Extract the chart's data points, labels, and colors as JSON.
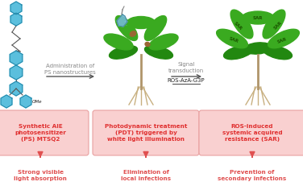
{
  "background_color": "#ffffff",
  "box_left_text": "Synthetic AIE\nphotosensitizer\n(PS) MTSQ2",
  "box_mid_text": "Photodynamic treatment\n(PDT) triggered by\nwhite light illumination",
  "box_right_text": "ROS-induced\nsystemic acquired\nresistance (SAR)",
  "arrow1_label1": "Administration of",
  "arrow1_label2": "PS nanostructures",
  "arrow2_label1": "Signal",
  "arrow2_label2": "transduction",
  "arrow2_label3": "ROS-AzA-G3P",
  "bottom_left1": "Strong visible",
  "bottom_left2": "light absorption",
  "bottom_mid1": "Elimination of",
  "bottom_mid2": "local infections",
  "bottom_right1": "Prevention of",
  "bottom_right2": "secondary infections",
  "box_fill": "#f9d0d0",
  "box_edge": "#e8a0a0",
  "text_red": "#e03030",
  "text_salmon": "#e05050",
  "text_gray": "#888888",
  "text_dark": "#222222",
  "arrow_color": "#555555",
  "hex_fill": "#5bbfdd",
  "hex_edge": "#2288aa",
  "leaf_green": "#3aaa20",
  "leaf_dark": "#228810",
  "stem_color": "#b0956a",
  "root_color": "#c8b080",
  "sar_color": "#1a5500",
  "spot_color": "#996633",
  "dropper_color": "#77bbdd"
}
